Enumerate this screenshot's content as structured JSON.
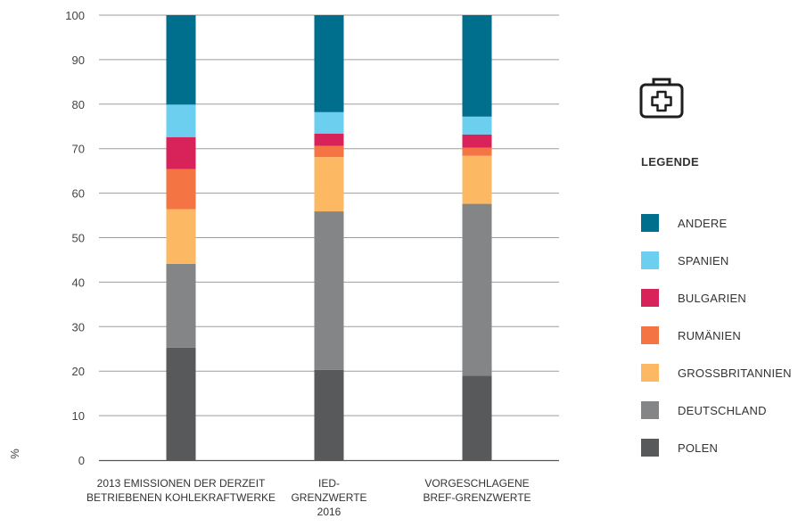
{
  "chart_data": {
    "type": "bar",
    "stacked": true,
    "categories": [
      [
        "2013 EMISSIONEN DER DERZEIT",
        "BETRIEBENEN KOHLEKRAFTWERKE"
      ],
      [
        "IED-",
        "GRENZWERTE",
        "2016"
      ],
      [
        "VORGESCHLAGENE",
        "BREF-GRENZWERTE"
      ]
    ],
    "series": [
      {
        "name": "POLEN",
        "color": "#58595b",
        "values": [
          25.3,
          20.3,
          19.0
        ]
      },
      {
        "name": "DEUTSCHLAND",
        "color": "#848587",
        "values": [
          18.8,
          35.6,
          38.6
        ]
      },
      {
        "name": "GROSSBRITANNIEN",
        "color": "#fdb863",
        "values": [
          12.3,
          12.2,
          10.8
        ]
      },
      {
        "name": "RUMÄNIEN",
        "color": "#f47543",
        "values": [
          9.0,
          2.5,
          1.8
        ]
      },
      {
        "name": "BULGARIEN",
        "color": "#d8225a",
        "values": [
          7.2,
          2.8,
          3.0
        ]
      },
      {
        "name": "SPANIEN",
        "color": "#6dcff0",
        "values": [
          7.3,
          4.8,
          4.0
        ]
      },
      {
        "name": "ANDERE",
        "color": "#006f8e",
        "values": [
          20.1,
          21.8,
          22.8
        ]
      }
    ],
    "ylim": [
      0,
      100
    ],
    "yticks": [
      0,
      10,
      20,
      30,
      40,
      50,
      60,
      70,
      80,
      90,
      100
    ],
    "ylabel": "%",
    "grid": true,
    "legend_position": "right"
  },
  "legend": {
    "title": "LEGENDE",
    "icon": "first-aid-kit-icon",
    "items": [
      "ANDERE",
      "SPANIEN",
      "BULGARIEN",
      "RUMÄNIEN",
      "GROSSBRITANNIEN",
      "DEUTSCHLAND",
      "POLEN"
    ]
  }
}
